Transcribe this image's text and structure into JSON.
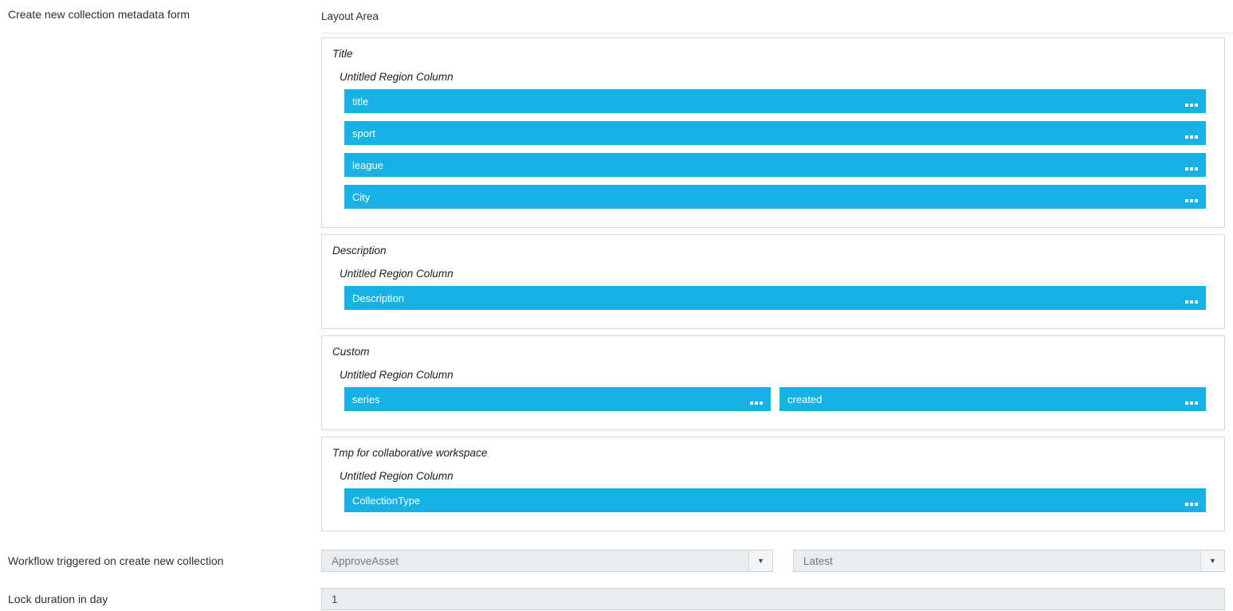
{
  "labels": {
    "create_form": "Create new collection metadata form",
    "workflow": "Workflow triggered on create new collection",
    "lock": "Lock duration in day"
  },
  "layout_area": {
    "title": "Layout Area",
    "sections": [
      {
        "title": "Title",
        "region": "Untitled Region Column",
        "fields": [
          "title",
          "sport",
          "league",
          "City"
        ]
      },
      {
        "title": "Description",
        "region": "Untitled Region Column",
        "fields": [
          "Description"
        ]
      },
      {
        "title": "Custom",
        "region": "Untitled Region Column",
        "fields": [
          "series",
          "created"
        ]
      },
      {
        "title": "Tmp for collaborative workspace",
        "region": "Untitled Region Column",
        "fields": [
          "CollectionType"
        ]
      }
    ]
  },
  "workflow": {
    "trigger_select_value": "ApproveAsset",
    "version_select_value": "Latest"
  },
  "lock_duration": {
    "value": "1"
  },
  "icons": {
    "field_handle": "drag-handle-icon",
    "select_arrow": "chevron-down-icon"
  },
  "colors": {
    "field_bar": "#16b2e3",
    "field_bar_text": "#ffffff",
    "panel_border": "#d8d8d8",
    "input_background": "#e9edf0",
    "input_border": "#cfd6db",
    "muted_text": "#76797c"
  }
}
